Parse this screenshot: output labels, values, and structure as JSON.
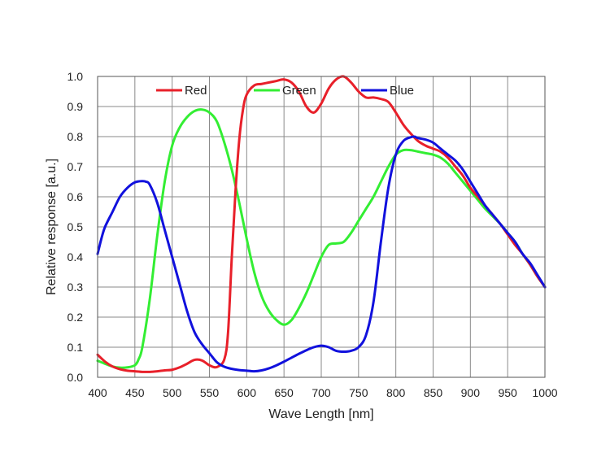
{
  "chart_data": {
    "type": "line",
    "title": "",
    "xlabel": "Wave Length [nm]",
    "ylabel": "Relative response [a.u.]",
    "xlim": [
      400,
      1000
    ],
    "ylim": [
      0,
      1.0
    ],
    "grid": true,
    "legend_position": "top",
    "x_ticks": [
      "400",
      "450",
      "500",
      "550",
      "600",
      "650",
      "700",
      "750",
      "800",
      "850",
      "900",
      "950",
      "1000"
    ],
    "y_ticks": [
      "0.0",
      "0.1",
      "0.2",
      "0.3",
      "0.4",
      "0.5",
      "0.6",
      "0.7",
      "0.8",
      "0.9",
      "1.0"
    ],
    "series": [
      {
        "name": "Red",
        "color": "#e8202a",
        "x": [
          400,
          410,
          420,
          430,
          440,
          450,
          460,
          470,
          480,
          490,
          500,
          510,
          520,
          530,
          540,
          550,
          560,
          570,
          575,
          580,
          585,
          590,
          595,
          600,
          610,
          620,
          630,
          640,
          650,
          660,
          670,
          680,
          690,
          700,
          710,
          720,
          730,
          740,
          750,
          760,
          770,
          780,
          790,
          800,
          810,
          820,
          830,
          840,
          850,
          860,
          870,
          880,
          890,
          900,
          910,
          920,
          930,
          940,
          950,
          960,
          970,
          980,
          990,
          1000
        ],
        "y": [
          0.075,
          0.052,
          0.036,
          0.027,
          0.022,
          0.02,
          0.018,
          0.018,
          0.02,
          0.023,
          0.025,
          0.033,
          0.045,
          0.058,
          0.056,
          0.04,
          0.034,
          0.06,
          0.15,
          0.4,
          0.62,
          0.79,
          0.89,
          0.94,
          0.97,
          0.975,
          0.98,
          0.985,
          0.99,
          0.98,
          0.95,
          0.9,
          0.88,
          0.91,
          0.96,
          0.99,
          1.0,
          0.98,
          0.95,
          0.93,
          0.93,
          0.925,
          0.915,
          0.88,
          0.84,
          0.81,
          0.785,
          0.77,
          0.76,
          0.75,
          0.73,
          0.7,
          0.67,
          0.63,
          0.6,
          0.57,
          0.54,
          0.51,
          0.475,
          0.44,
          0.41,
          0.375,
          0.335,
          0.3
        ]
      },
      {
        "name": "Green",
        "color": "#33ee33",
        "x": [
          400,
          410,
          420,
          430,
          440,
          450,
          455,
          460,
          470,
          480,
          490,
          500,
          510,
          520,
          530,
          540,
          550,
          560,
          570,
          580,
          590,
          600,
          610,
          620,
          630,
          640,
          650,
          660,
          670,
          680,
          690,
          700,
          710,
          720,
          730,
          740,
          750,
          760,
          770,
          780,
          790,
          800,
          810,
          820,
          830,
          840,
          850,
          860,
          870,
          880,
          890,
          900,
          910,
          920,
          930,
          940,
          950,
          960,
          970,
          980,
          990,
          1000
        ],
        "y": [
          0.055,
          0.045,
          0.036,
          0.032,
          0.033,
          0.04,
          0.06,
          0.1,
          0.26,
          0.47,
          0.65,
          0.77,
          0.83,
          0.865,
          0.885,
          0.89,
          0.88,
          0.85,
          0.78,
          0.69,
          0.58,
          0.46,
          0.35,
          0.27,
          0.22,
          0.19,
          0.175,
          0.19,
          0.23,
          0.28,
          0.34,
          0.4,
          0.44,
          0.445,
          0.45,
          0.48,
          0.52,
          0.56,
          0.6,
          0.65,
          0.7,
          0.74,
          0.755,
          0.755,
          0.75,
          0.745,
          0.74,
          0.73,
          0.71,
          0.68,
          0.65,
          0.62,
          0.59,
          0.56,
          0.535,
          0.51,
          0.48,
          0.45,
          0.41,
          0.375,
          0.335,
          0.3
        ]
      },
      {
        "name": "Blue",
        "color": "#1111dd",
        "x": [
          400,
          405,
          410,
          420,
          430,
          440,
          450,
          460,
          465,
          470,
          480,
          490,
          500,
          510,
          520,
          530,
          540,
          550,
          560,
          570,
          580,
          590,
          600,
          610,
          620,
          630,
          640,
          650,
          660,
          670,
          680,
          690,
          700,
          710,
          720,
          730,
          740,
          750,
          760,
          770,
          780,
          790,
          800,
          810,
          820,
          825,
          830,
          840,
          850,
          860,
          870,
          880,
          890,
          900,
          910,
          920,
          930,
          940,
          950,
          960,
          970,
          980,
          990,
          1000
        ],
        "y": [
          0.41,
          0.46,
          0.5,
          0.55,
          0.6,
          0.63,
          0.648,
          0.652,
          0.65,
          0.64,
          0.58,
          0.49,
          0.4,
          0.31,
          0.22,
          0.15,
          0.11,
          0.08,
          0.05,
          0.035,
          0.028,
          0.024,
          0.022,
          0.02,
          0.023,
          0.03,
          0.04,
          0.052,
          0.065,
          0.078,
          0.09,
          0.1,
          0.105,
          0.1,
          0.088,
          0.085,
          0.088,
          0.1,
          0.14,
          0.25,
          0.45,
          0.63,
          0.74,
          0.785,
          0.798,
          0.8,
          0.795,
          0.79,
          0.78,
          0.76,
          0.74,
          0.72,
          0.69,
          0.65,
          0.61,
          0.57,
          0.54,
          0.51,
          0.48,
          0.45,
          0.41,
          0.38,
          0.34,
          0.3
        ]
      }
    ]
  }
}
